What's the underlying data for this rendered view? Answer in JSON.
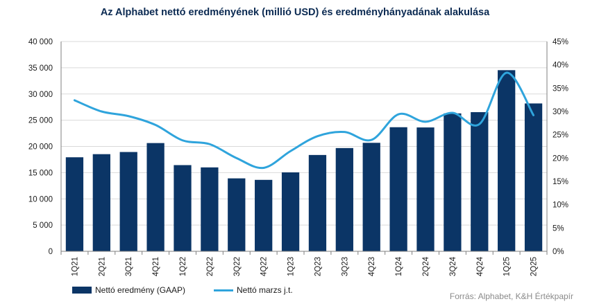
{
  "chart_data": {
    "type": "bar",
    "title": "Az Alphabet nettó eredményének (millió USD) és eredményhányadának alakulása",
    "categories": [
      "1Q21",
      "2Q21",
      "3Q21",
      "4Q21",
      "1Q22",
      "2Q22",
      "3Q22",
      "4Q22",
      "1Q23",
      "2Q23",
      "3Q23",
      "4Q23",
      "1Q24",
      "2Q24",
      "3Q24",
      "4Q24",
      "1Q25",
      "2Q25"
    ],
    "series": [
      {
        "name": "Nettó eredmény (GAAP)",
        "type": "bar",
        "axis": "left",
        "color": "#0b3566",
        "values": [
          17930,
          18525,
          18936,
          20642,
          16436,
          16002,
          13910,
          13624,
          15051,
          18368,
          19689,
          20687,
          23662,
          23619,
          26301,
          26536,
          34540,
          28196
        ]
      },
      {
        "name": "Nettó marzs j.t.",
        "type": "line",
        "axis": "right",
        "color": "#2fa4dc",
        "values": [
          32.4,
          30.0,
          29.0,
          27.1,
          23.8,
          23.0,
          20.0,
          17.9,
          21.5,
          24.7,
          25.6,
          23.9,
          29.4,
          27.8,
          29.7,
          27.3,
          38.3,
          29.2
        ]
      }
    ],
    "y_left": {
      "ylim": [
        0,
        40000
      ],
      "ticks": [
        0,
        5000,
        10000,
        15000,
        20000,
        25000,
        30000,
        35000,
        40000
      ],
      "tick_labels": [
        "0",
        "5 000",
        "10 000",
        "15 000",
        "20 000",
        "25 000",
        "30 000",
        "35 000",
        "40 000"
      ]
    },
    "y_right": {
      "ylim": [
        0,
        45
      ],
      "ticks": [
        0,
        5,
        10,
        15,
        20,
        25,
        30,
        35,
        40,
        45
      ],
      "tick_labels": [
        "0%",
        "5%",
        "10%",
        "15%",
        "20%",
        "25%",
        "30%",
        "35%",
        "40%",
        "45%"
      ]
    },
    "grid": true,
    "legend": "bottom-left",
    "source": "Forrás: Alphabet, K&H Értékpapír"
  }
}
